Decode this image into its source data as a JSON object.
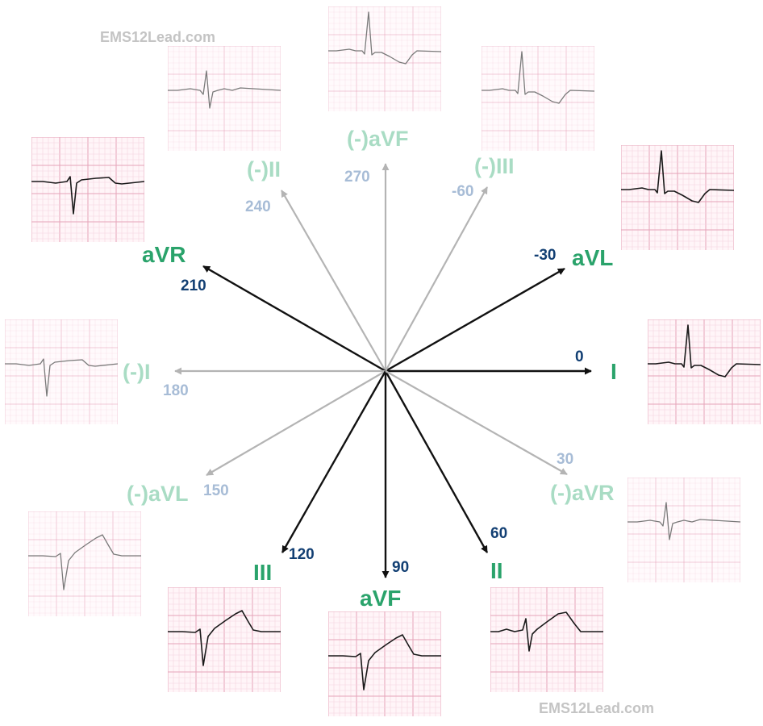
{
  "watermark": "EMS12Lead.com",
  "colors": {
    "lead_primary": "#2aa36b",
    "lead_inverted": "#a9dcc4",
    "degree_primary": "#123f73",
    "degree_inverted": "#a7bcd6",
    "axis_primary": "#111111",
    "axis_inverted": "#b4b4b4",
    "grid_major": "#e6a3b9",
    "grid_minor": "#f5d4df",
    "trace": "#1a1a1a"
  },
  "leads": [
    {
      "id": "I",
      "label": "I",
      "degree": "0",
      "angle": 0,
      "inverted": false
    },
    {
      "id": "aVL",
      "label": "aVL",
      "degree": "-30",
      "angle": -30,
      "inverted": false
    },
    {
      "id": "neg-III",
      "label": "(-)III",
      "degree": "-60",
      "angle": -60,
      "inverted": true
    },
    {
      "id": "neg-aVF",
      "label": "(-)aVF",
      "degree": "270",
      "angle": 270,
      "inverted": true
    },
    {
      "id": "neg-II",
      "label": "(-)II",
      "degree": "240",
      "angle": 240,
      "inverted": true
    },
    {
      "id": "aVR",
      "label": "aVR",
      "degree": "210",
      "angle": 210,
      "inverted": false
    },
    {
      "id": "neg-I",
      "label": "(-)I",
      "degree": "180",
      "angle": 180,
      "inverted": true
    },
    {
      "id": "neg-aVL",
      "label": "(-)aVL",
      "degree": "150",
      "angle": 150,
      "inverted": true
    },
    {
      "id": "III",
      "label": "III",
      "degree": "120",
      "angle": 120,
      "inverted": false
    },
    {
      "id": "aVF",
      "label": "aVF",
      "degree": "90",
      "angle": 90,
      "inverted": false
    },
    {
      "id": "II",
      "label": "II",
      "degree": "60",
      "angle": 60,
      "inverted": false
    },
    {
      "id": "neg-aVR",
      "label": "(-)aVR",
      "degree": "30",
      "angle": 30,
      "inverted": true
    }
  ]
}
